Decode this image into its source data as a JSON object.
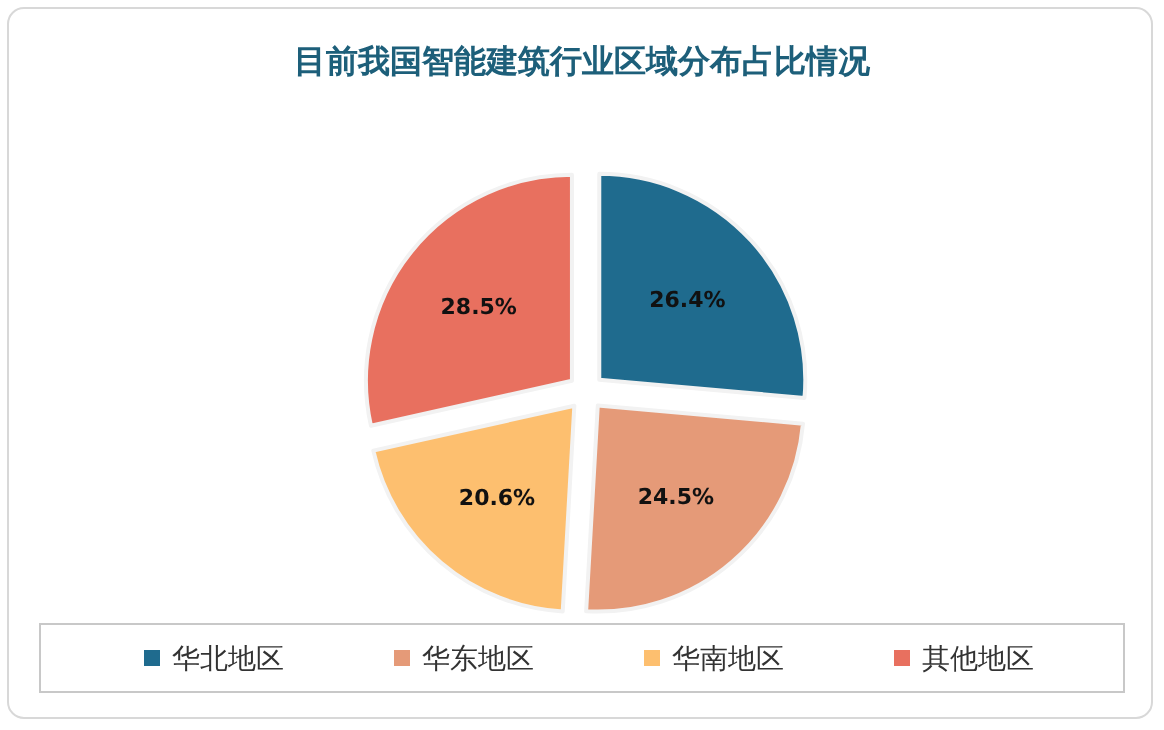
{
  "chart_data": {
    "type": "pie",
    "title": "目前我国智能建筑行业区域分布占比情况",
    "categories": [
      "华北地区",
      "华东地区",
      "华南地区",
      "其他地区"
    ],
    "values": [
      26.4,
      24.5,
      20.6,
      28.5
    ],
    "value_labels": [
      "26.4%",
      "24.5%",
      "20.6%",
      "28.5%"
    ],
    "colors": [
      "#1f6b8e",
      "#e59a78",
      "#fdbf6f",
      "#e8705f"
    ],
    "legend": "bottom"
  }
}
